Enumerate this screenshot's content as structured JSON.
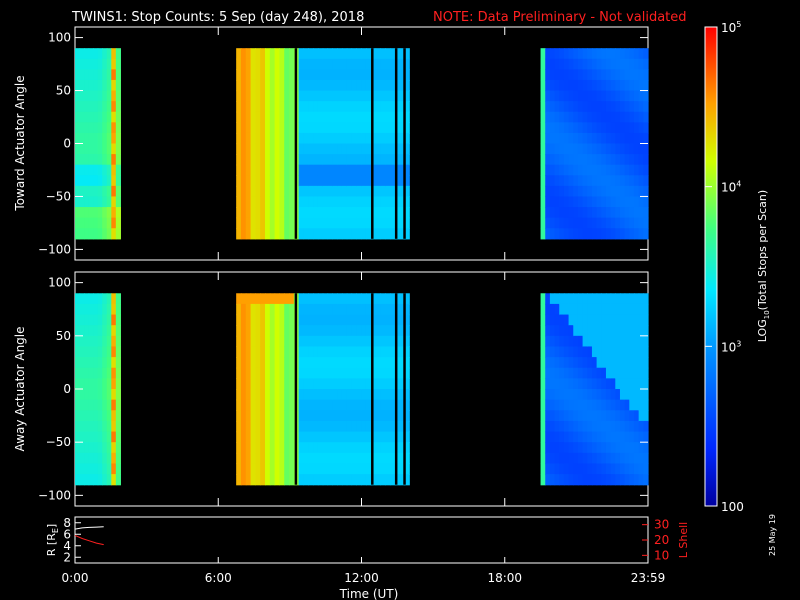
{
  "title": {
    "main": "TWINS1: Stop Counts:  5 Sep (day 248), 2018",
    "note": "NOTE: Data Preliminary - Not validated"
  },
  "stamp": "25 May 19",
  "chart_data": [
    {
      "type": "heatmap",
      "panel": "top",
      "ylabel": "Toward Actuator Angle",
      "y_ticks": [
        -100,
        -50,
        0,
        50,
        100
      ],
      "ylim": [
        -110,
        110
      ],
      "y_data_range": [
        -90,
        90
      ],
      "x_ticks": [
        "0:00",
        "6:00",
        "12:00",
        "18:00",
        "23:59"
      ],
      "xlim_hours": [
        0,
        24
      ],
      "data_blocks_hours": [
        [
          0,
          1.9
        ],
        [
          6.75,
          14.0
        ],
        [
          19.5,
          24
        ]
      ],
      "dropouts_hours": [
        9.2,
        12.4,
        13.4,
        13.75
      ]
    },
    {
      "type": "heatmap",
      "panel": "middle",
      "ylabel": "Away Actuator Angle",
      "y_ticks": [
        -100,
        -50,
        0,
        50,
        100
      ],
      "ylim": [
        -110,
        110
      ],
      "y_data_range": [
        -90,
        90
      ],
      "x_ticks": [
        "0:00",
        "6:00",
        "12:00",
        "18:00",
        "23:59"
      ],
      "xlim_hours": [
        0,
        24
      ],
      "data_blocks_hours": [
        [
          0,
          1.9
        ],
        [
          6.75,
          14.0
        ],
        [
          19.5,
          24
        ]
      ],
      "dropouts_hours": [
        9.2,
        12.4,
        13.4,
        13.75
      ]
    },
    {
      "type": "line",
      "panel": "bottom",
      "ylabel_left": "R [R",
      "ylabel_left_sub": "E",
      "ylabel_left_end": "]",
      "ylabel_right": "L Shell",
      "y_left_ticks": [
        2,
        4,
        6,
        8
      ],
      "y_right_ticks": [
        10,
        20,
        30
      ],
      "xlabel": "Time (UT)",
      "x_ticks": [
        "0:00",
        "6:00",
        "12:00",
        "18:00",
        "23:59"
      ],
      "series": [
        {
          "axis": "left",
          "color": "#ffffff",
          "x": [
            0.0,
            0.3,
            0.6,
            0.9,
            1.2
          ],
          "y": [
            6.9,
            7.1,
            7.2,
            7.25,
            7.3
          ]
        },
        {
          "axis": "right",
          "color": "#ff2020",
          "x": [
            0.0,
            0.3,
            0.6,
            0.9,
            1.2
          ],
          "y": [
            23,
            21,
            19.5,
            18,
            17
          ]
        }
      ]
    }
  ],
  "colorbar": {
    "label": "LOG",
    "label_sub": "10",
    "label_rest": "(Total Stops per Scan)",
    "ticks": [
      {
        "base": "10",
        "exp": "5",
        "value": 100000
      },
      {
        "base": "10",
        "exp": "4",
        "value": 10000
      },
      {
        "base": "10",
        "exp": "3",
        "value": 1000
      },
      {
        "base": "100",
        "exp": "",
        "value": 100
      }
    ],
    "range": [
      100,
      100000
    ]
  }
}
